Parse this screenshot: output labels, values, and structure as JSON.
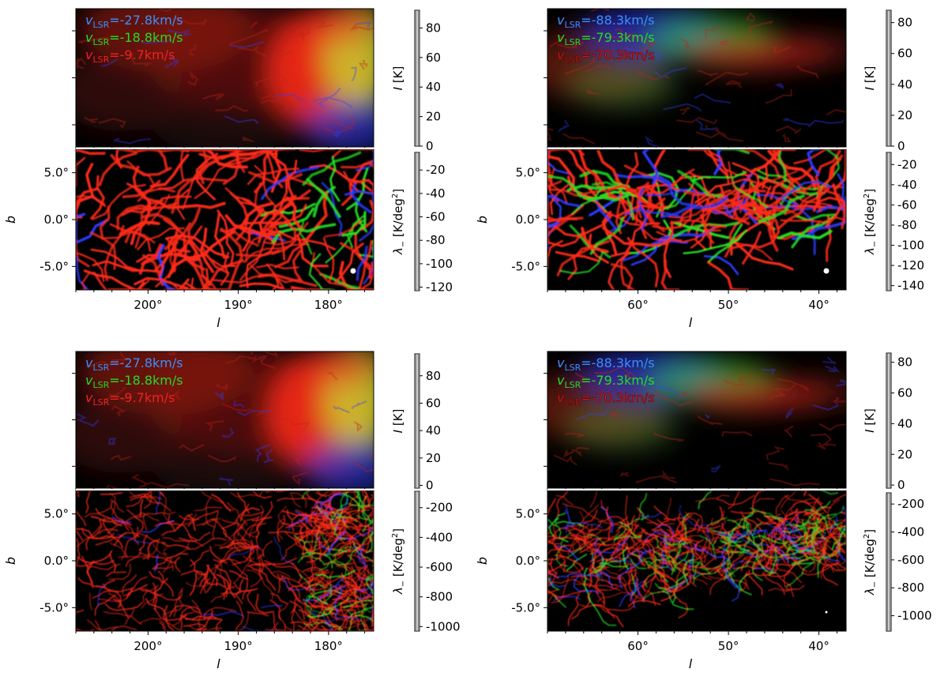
{
  "chart_data": [
    {
      "type": "heatmap",
      "panel": "top-left",
      "map": "intensity",
      "xlim": [
        208,
        175
      ],
      "x_ticks": [
        200,
        190,
        180
      ],
      "x_tick_labels": [],
      "y_tick_labels": [],
      "xlabel": "",
      "ylabel": "",
      "legend_placement": "top-left",
      "series": [
        {
          "name": "v_LSR=-27.8km/s",
          "label_prefix": "v",
          "label_sub": "LSR",
          "label_value": "=-27.8km/s",
          "color": "#3a8fff"
        },
        {
          "name": "v_LSR=-18.8km/s",
          "label_prefix": "v",
          "label_sub": "LSR",
          "label_value": "=-18.8km/s",
          "color": "#22dd22"
        },
        {
          "name": "v_LSR=-9.7km/s",
          "label_prefix": "v",
          "label_sub": "LSR",
          "label_value": "=-9.7km/s",
          "color": "#ee2222"
        }
      ],
      "colorbar": {
        "label_var": "I",
        "label_unit": " [K]",
        "range": [
          0,
          92
        ],
        "ticks": [
          0,
          20,
          40,
          60,
          80
        ],
        "tick_labels": [
          "0",
          "20",
          "40",
          "60",
          "80"
        ]
      },
      "beam_marker": false
    },
    {
      "type": "heatmap",
      "panel": "top-left-lower",
      "map": "lambda_minus",
      "xlim": [
        208,
        175
      ],
      "ylim": [
        -7.5,
        7.5
      ],
      "x_ticks": [
        200,
        190,
        180
      ],
      "x_tick_labels": [
        "200°",
        "190°",
        "180°"
      ],
      "y_ticks": [
        5,
        0,
        -5
      ],
      "y_tick_labels": [
        "5.0°",
        "0.0°",
        "-5.0°"
      ],
      "xlabel": "l",
      "ylabel": "b",
      "colorbar": {
        "label_var": "λ",
        "label_sub": "−",
        "label_unit": " [K/deg",
        "label_sup": "2",
        "label_close": "]",
        "range": [
          -123,
          -5
        ],
        "ticks": [
          -20,
          -40,
          -60,
          -80,
          -100,
          -120
        ],
        "tick_labels": [
          "-20",
          "-40",
          "-60",
          "-80",
          "-100",
          "-120"
        ]
      },
      "beam_marker": true
    },
    {
      "type": "heatmap",
      "panel": "top-right",
      "map": "intensity",
      "xlim": [
        70,
        37
      ],
      "x_ticks": [
        60,
        50,
        40
      ],
      "x_tick_labels": [],
      "y_tick_labels": [],
      "legend_placement": "top-left",
      "series": [
        {
          "name": "v_LSR=-88.3km/s",
          "label_prefix": "v",
          "label_sub": "LSR",
          "label_value": "=-88.3km/s",
          "color": "#3a8fff"
        },
        {
          "name": "v_LSR=-79.3km/s",
          "label_prefix": "v",
          "label_sub": "LSR",
          "label_value": "=-79.3km/s",
          "color": "#22dd22"
        },
        {
          "name": "v_LSR=-70.3km/s",
          "label_prefix": "v",
          "label_sub": "LSR",
          "label_value": "=-70.3km/s",
          "color": "#ee2222"
        }
      ],
      "colorbar": {
        "label_var": "I",
        "label_unit": " [K]",
        "range": [
          0,
          88
        ],
        "ticks": [
          0,
          20,
          40,
          60,
          80
        ],
        "tick_labels": [
          "0",
          "20",
          "40",
          "60",
          "80"
        ]
      },
      "beam_marker": false
    },
    {
      "type": "heatmap",
      "panel": "top-right-lower",
      "map": "lambda_minus",
      "xlim": [
        70,
        37
      ],
      "ylim": [
        -7.5,
        7.5
      ],
      "x_ticks": [
        60,
        50,
        40
      ],
      "x_tick_labels": [
        "60°",
        "50°",
        "40°"
      ],
      "y_ticks": [
        5,
        0,
        -5
      ],
      "y_tick_labels": [
        "5.0°",
        "0.0°",
        "-5.0°"
      ],
      "xlabel": "l",
      "ylabel": "b",
      "colorbar": {
        "label_var": "λ",
        "label_sub": "−",
        "label_unit": " [K/deg",
        "label_sup": "2",
        "label_close": "]",
        "range": [
          -145,
          -8
        ],
        "ticks": [
          -20,
          -40,
          -60,
          -80,
          -100,
          -120,
          -140
        ],
        "tick_labels": [
          "-20",
          "-40",
          "-60",
          "-80",
          "-100",
          "-120",
          "-140"
        ]
      },
      "beam_marker": true
    },
    {
      "type": "heatmap",
      "panel": "bottom-left",
      "map": "intensity",
      "xlim": [
        208,
        175
      ],
      "x_ticks": [
        200,
        190,
        180
      ],
      "x_tick_labels": [],
      "y_tick_labels": [],
      "legend_placement": "top-left",
      "series": [
        {
          "name": "v_LSR=-27.8km/s",
          "label_prefix": "v",
          "label_sub": "LSR",
          "label_value": "=-27.8km/s",
          "color": "#3a8fff"
        },
        {
          "name": "v_LSR=-18.8km/s",
          "label_prefix": "v",
          "label_sub": "LSR",
          "label_value": "=-18.8km/s",
          "color": "#22dd22"
        },
        {
          "name": "v_LSR=-9.7km/s",
          "label_prefix": "v",
          "label_sub": "LSR",
          "label_value": "=-9.7km/s",
          "color": "#ee2222"
        }
      ],
      "colorbar": {
        "label_var": "I",
        "label_unit": " [K]",
        "range": [
          -2,
          96
        ],
        "ticks": [
          0,
          20,
          40,
          60,
          80
        ],
        "tick_labels": [
          "0",
          "20",
          "40",
          "60",
          "80"
        ]
      },
      "beam_marker": false
    },
    {
      "type": "heatmap",
      "panel": "bottom-left-lower",
      "map": "lambda_minus",
      "xlim": [
        208,
        175
      ],
      "ylim": [
        -7.5,
        7.5
      ],
      "x_ticks": [
        200,
        190,
        180
      ],
      "x_tick_labels": [
        "200°",
        "190°",
        "180°"
      ],
      "y_ticks": [
        5,
        0,
        -5
      ],
      "y_tick_labels": [
        "5.0°",
        "0.0°",
        "-5.0°"
      ],
      "xlabel": "l",
      "ylabel": "b",
      "colorbar": {
        "label_var": "λ",
        "label_sub": "−",
        "label_unit": " [K/deg",
        "label_sup": "2",
        "label_close": "]",
        "range": [
          -1030,
          -90
        ],
        "ticks": [
          -200,
          -400,
          -600,
          -800,
          -1000
        ],
        "tick_labels": [
          "-200",
          "-400",
          "-600",
          "-800",
          "-1000"
        ]
      },
      "beam_marker": false
    },
    {
      "type": "heatmap",
      "panel": "bottom-right",
      "map": "intensity",
      "xlim": [
        70,
        37
      ],
      "x_ticks": [
        60,
        50,
        40
      ],
      "x_tick_labels": [],
      "y_tick_labels": [],
      "legend_placement": "top-left",
      "series": [
        {
          "name": "v_LSR=-88.3km/s",
          "label_prefix": "v",
          "label_sub": "LSR",
          "label_value": "=-88.3km/s",
          "color": "#3a8fff"
        },
        {
          "name": "v_LSR=-79.3km/s",
          "label_prefix": "v",
          "label_sub": "LSR",
          "label_value": "=-79.3km/s",
          "color": "#22dd22"
        },
        {
          "name": "v_LSR=-70.3km/s",
          "label_prefix": "v",
          "label_sub": "LSR",
          "label_value": "=-70.3km/s",
          "color": "#ee2222"
        }
      ],
      "colorbar": {
        "label_var": "I",
        "label_unit": " [K]",
        "range": [
          -2,
          86
        ],
        "ticks": [
          0,
          20,
          40,
          60,
          80
        ],
        "tick_labels": [
          "0",
          "20",
          "40",
          "60",
          "80"
        ]
      },
      "beam_marker": false
    },
    {
      "type": "heatmap",
      "panel": "bottom-right-lower",
      "map": "lambda_minus",
      "xlim": [
        70,
        37
      ],
      "ylim": [
        -7.5,
        7.5
      ],
      "x_ticks": [
        60,
        50,
        40
      ],
      "x_tick_labels": [
        "60°",
        "50°",
        "40°"
      ],
      "y_ticks": [
        5,
        0,
        -5
      ],
      "y_tick_labels": [
        "5.0°",
        "0.0°",
        "-5.0°"
      ],
      "xlabel": "l",
      "ylabel": "b",
      "colorbar": {
        "label_var": "λ",
        "label_sub": "−",
        "label_unit": " [K/deg",
        "label_sup": "2",
        "label_close": "]",
        "range": [
          -1110,
          -120
        ],
        "ticks": [
          -200,
          -400,
          -600,
          -800,
          -1000
        ],
        "tick_labels": [
          "-200",
          "-400",
          "-600",
          "-800",
          "-1000"
        ]
      },
      "beam_marker": true
    }
  ]
}
